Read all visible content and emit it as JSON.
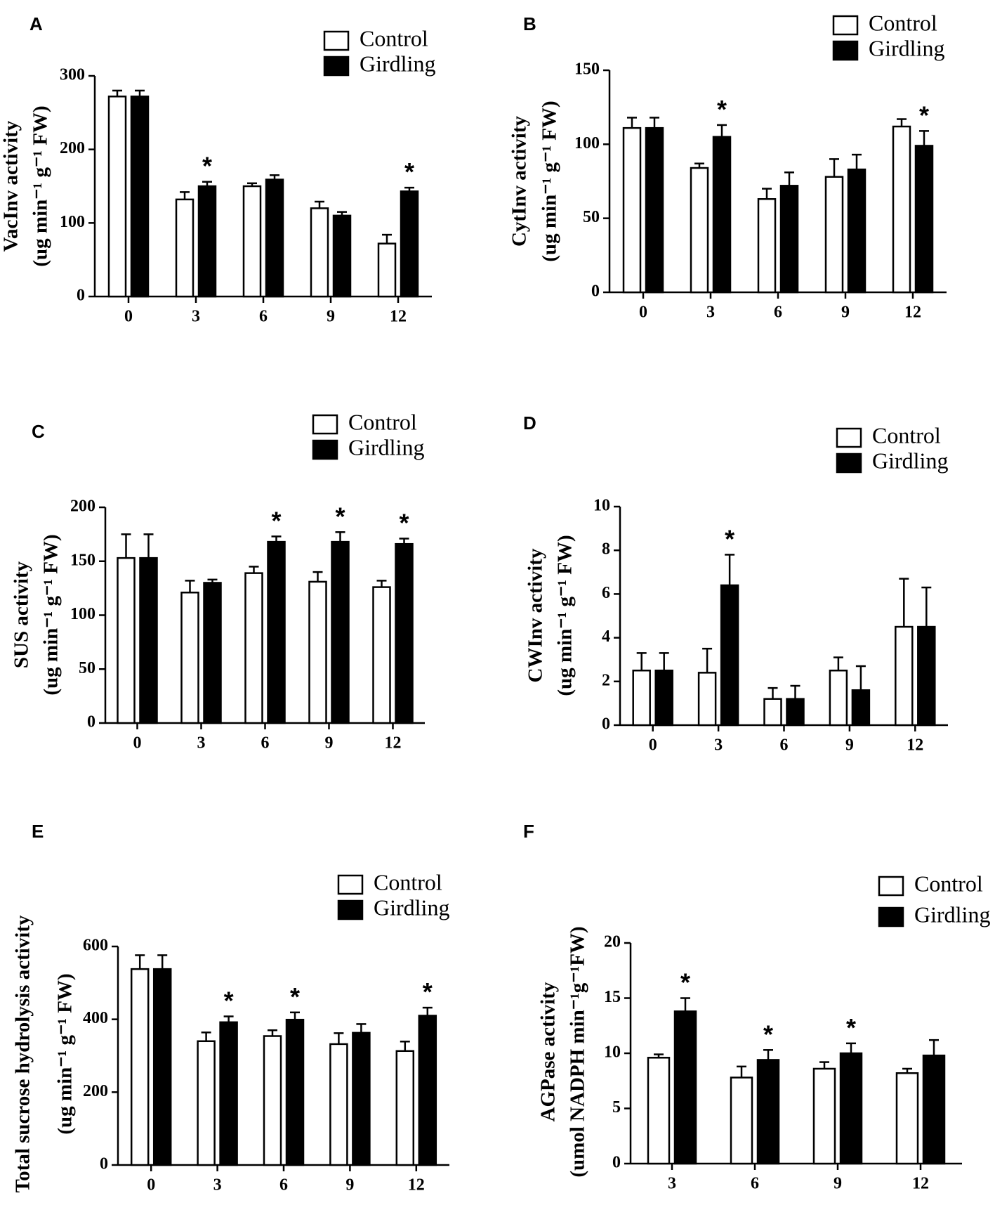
{
  "chart_data": [
    {
      "panel": "A",
      "type": "bar",
      "ylabel_line1": "VacInv activity",
      "ylabel_line2": "(ug min⁻¹ g⁻¹ FW)",
      "categories": [
        "0",
        "3",
        "6",
        "9",
        "12"
      ],
      "yticks": [
        "0",
        "100",
        "200",
        "300"
      ],
      "ylim": [
        0,
        300
      ],
      "series": [
        {
          "name": "Control",
          "color": "#ffffff",
          "values": [
            272,
            132,
            150,
            120,
            72
          ],
          "errors": [
            8,
            10,
            4,
            9,
            12
          ]
        },
        {
          "name": "Girdling",
          "color": "#000000",
          "values": [
            272,
            150,
            159,
            110,
            143
          ],
          "errors": [
            8,
            6,
            6,
            5,
            5
          ]
        }
      ],
      "significant": [
        {
          "index": 1,
          "label": "*"
        },
        {
          "index": 4,
          "label": "*"
        }
      ]
    },
    {
      "panel": "B",
      "type": "bar",
      "ylabel_line1": "CytInv activity",
      "ylabel_line2": "(ug min⁻¹ g⁻¹ FW)",
      "categories": [
        "0",
        "3",
        "6",
        "9",
        "12"
      ],
      "yticks": [
        "0",
        "50",
        "100",
        "150"
      ],
      "ylim": [
        0,
        150
      ],
      "series": [
        {
          "name": "Control",
          "color": "#ffffff",
          "values": [
            111,
            84,
            63,
            78,
            112
          ],
          "errors": [
            7,
            3,
            7,
            12,
            5
          ]
        },
        {
          "name": "Girdling",
          "color": "#000000",
          "values": [
            111,
            105,
            72,
            83,
            99
          ],
          "errors": [
            7,
            8,
            9,
            10,
            10
          ]
        }
      ],
      "significant": [
        {
          "index": 1,
          "label": "*"
        },
        {
          "index": 4,
          "label": "*"
        }
      ]
    },
    {
      "panel": "C",
      "type": "bar",
      "ylabel_line1": "SUS activity",
      "ylabel_line2": "(ug min⁻¹ g⁻¹ FW)",
      "categories": [
        "0",
        "3",
        "6",
        "9",
        "12"
      ],
      "yticks": [
        "0",
        "50",
        "100",
        "150",
        "200"
      ],
      "ylim": [
        0,
        200
      ],
      "series": [
        {
          "name": "Control",
          "color": "#ffffff",
          "values": [
            153,
            121,
            139,
            131,
            126
          ],
          "errors": [
            22,
            11,
            6,
            9,
            6
          ]
        },
        {
          "name": "Girdling",
          "color": "#000000",
          "values": [
            153,
            130,
            168,
            168,
            166
          ],
          "errors": [
            22,
            3,
            5,
            9,
            5
          ]
        }
      ],
      "significant": [
        {
          "index": 2,
          "label": "*"
        },
        {
          "index": 3,
          "label": "*"
        },
        {
          "index": 4,
          "label": "*"
        }
      ]
    },
    {
      "panel": "D",
      "type": "bar",
      "ylabel_line1": "CWInv activity",
      "ylabel_line2": "(ug min⁻¹ g⁻¹ FW)",
      "categories": [
        "0",
        "3",
        "6",
        "9",
        "12"
      ],
      "yticks": [
        "0",
        "2",
        "4",
        "6",
        "8",
        "10"
      ],
      "ylim": [
        0,
        10
      ],
      "series": [
        {
          "name": "Control",
          "color": "#ffffff",
          "values": [
            2.5,
            2.4,
            1.2,
            2.5,
            4.5
          ],
          "errors": [
            0.8,
            1.1,
            0.5,
            0.6,
            2.2
          ]
        },
        {
          "name": "Girdling",
          "color": "#000000",
          "values": [
            2.5,
            6.4,
            1.2,
            1.6,
            4.5
          ],
          "errors": [
            0.8,
            1.4,
            0.6,
            1.1,
            1.8
          ]
        }
      ],
      "significant": [
        {
          "index": 1,
          "label": "*"
        }
      ]
    },
    {
      "panel": "E",
      "type": "bar",
      "ylabel_line1": "Total sucrose hydrolysis activity",
      "ylabel_line2": "(ug min⁻¹ g⁻¹ FW)",
      "categories": [
        "0",
        "3",
        "6",
        "9",
        "12"
      ],
      "yticks": [
        "0",
        "200",
        "400",
        "600"
      ],
      "ylim": [
        0,
        600
      ],
      "series": [
        {
          "name": "Control",
          "color": "#ffffff",
          "values": [
            538,
            340,
            354,
            332,
            313
          ],
          "errors": [
            38,
            24,
            16,
            30,
            26
          ]
        },
        {
          "name": "Girdling",
          "color": "#000000",
          "values": [
            538,
            392,
            399,
            363,
            410
          ],
          "errors": [
            38,
            16,
            20,
            24,
            22
          ]
        }
      ],
      "significant": [
        {
          "index": 1,
          "label": "*"
        },
        {
          "index": 2,
          "label": "*"
        },
        {
          "index": 4,
          "label": "*"
        }
      ]
    },
    {
      "panel": "F",
      "type": "bar",
      "ylabel_line1": "AGPase activity",
      "ylabel_line2": "(umol NADPH min⁻¹g⁻¹FW)",
      "categories": [
        "3",
        "6",
        "9",
        "12"
      ],
      "yticks": [
        "0",
        "5",
        "10",
        "15",
        "20"
      ],
      "ylim": [
        0,
        20
      ],
      "series": [
        {
          "name": "Control",
          "color": "#ffffff",
          "values": [
            9.6,
            7.8,
            8.6,
            8.2
          ],
          "errors": [
            0.3,
            1.0,
            0.6,
            0.4
          ]
        },
        {
          "name": "Girdling",
          "color": "#000000",
          "values": [
            13.8,
            9.4,
            10.0,
            9.8
          ],
          "errors": [
            1.2,
            0.9,
            0.9,
            1.4
          ]
        }
      ],
      "significant": [
        {
          "index": 0,
          "label": "*"
        },
        {
          "index": 1,
          "label": "*"
        },
        {
          "index": 2,
          "label": "*"
        }
      ]
    }
  ]
}
